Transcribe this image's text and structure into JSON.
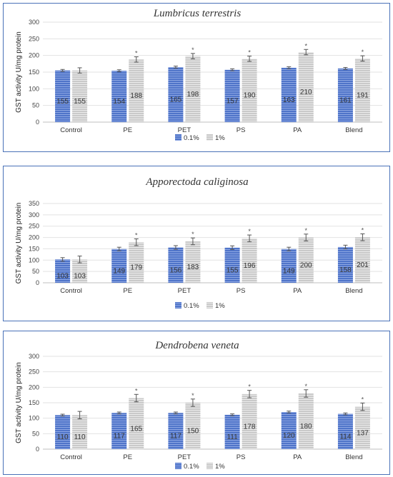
{
  "colors": {
    "series_0_1": "#4f74c9",
    "series_1": "#c9c9c9",
    "border": "#4a72b8"
  },
  "chart_data": [
    {
      "type": "bar",
      "title": "Lumbricus terrestris",
      "ylabel": "GST activity U/mg protein",
      "xlabel": "",
      "ylim": [
        0,
        300
      ],
      "yticks": [
        "0",
        "50",
        "100",
        "150",
        "200",
        "250",
        "300"
      ],
      "categories": [
        "Control",
        "PE",
        "PET",
        "PS",
        "PA",
        "Blend"
      ],
      "series": [
        {
          "name": "0.1%",
          "values": [
            155,
            154,
            165,
            157,
            163,
            161
          ],
          "errors": [
            3,
            3,
            3,
            3,
            3,
            3
          ]
        },
        {
          "name": "1%",
          "values": [
            155,
            188,
            198,
            190,
            210,
            191
          ],
          "errors": [
            8,
            8,
            8,
            8,
            8,
            8
          ]
        }
      ],
      "significant": [
        false,
        true,
        true,
        true,
        true,
        true
      ],
      "legend": "bottom",
      "grid": true
    },
    {
      "type": "bar",
      "title": "Apporectoda caliginosa",
      "ylabel": "GST activity U/mg protein",
      "xlabel": "",
      "ylim": [
        0,
        350
      ],
      "yticks": [
        "0",
        "50",
        "100",
        "150",
        "200",
        "250",
        "300",
        "350"
      ],
      "categories": [
        "Control",
        "PE",
        "PET",
        "PS",
        "PA",
        "Blend"
      ],
      "series": [
        {
          "name": "0.1%",
          "values": [
            103,
            149,
            156,
            155,
            149,
            158
          ],
          "errors": [
            8,
            8,
            8,
            8,
            8,
            8
          ]
        },
        {
          "name": "1%",
          "values": [
            103,
            179,
            183,
            196,
            200,
            201
          ],
          "errors": [
            15,
            15,
            15,
            15,
            15,
            15
          ]
        }
      ],
      "significant": [
        false,
        true,
        true,
        true,
        true,
        true
      ],
      "legend": "bottom",
      "grid": true
    },
    {
      "type": "bar",
      "title": "Dendrobena veneta",
      "ylabel": "GST activity U/mg protein",
      "xlabel": "",
      "ylim": [
        0,
        300
      ],
      "yticks": [
        "0",
        "50",
        "100",
        "150",
        "200",
        "250",
        "300"
      ],
      "categories": [
        "Control",
        "PE",
        "PET",
        "PS",
        "PA",
        "Blend"
      ],
      "series": [
        {
          "name": "0.1%",
          "values": [
            110,
            117,
            117,
            111,
            120,
            114
          ],
          "errors": [
            3,
            3,
            3,
            3,
            3,
            3
          ]
        },
        {
          "name": "1%",
          "values": [
            110,
            165,
            150,
            178,
            180,
            137
          ],
          "errors": [
            12,
            12,
            12,
            12,
            12,
            12
          ]
        }
      ],
      "significant": [
        false,
        true,
        true,
        true,
        true,
        true
      ],
      "legend": "bottom",
      "grid": true
    }
  ]
}
